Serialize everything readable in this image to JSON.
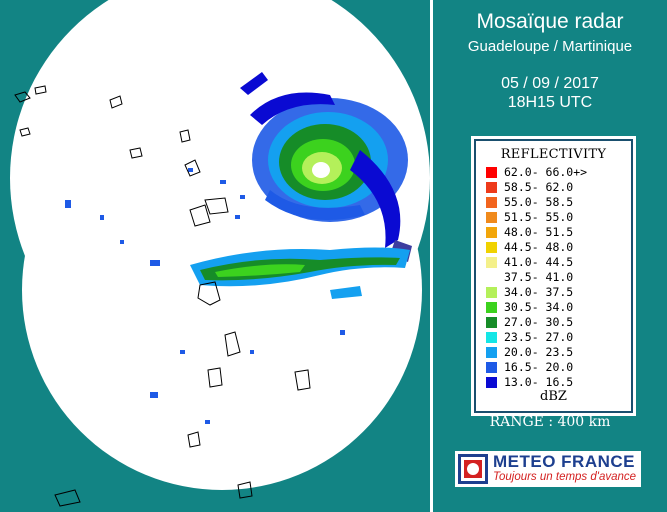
{
  "header": {
    "title": "Mosaïque radar",
    "subtitle": "Guadeloupe / Martinique",
    "date": "05 / 09 / 2017",
    "time": "18H15 UTC"
  },
  "legend": {
    "title": "REFLECTIVITY",
    "unit": "dBZ",
    "items": [
      {
        "range": "62.0- 66.0+>",
        "color": "#ff0000"
      },
      {
        "range": "58.5- 62.0",
        "color": "#ee3a1a"
      },
      {
        "range": "55.0- 58.5",
        "color": "#f2641e"
      },
      {
        "range": "51.5- 55.0",
        "color": "#f08a1c"
      },
      {
        "range": "48.0- 51.5",
        "color": "#f2a60a"
      },
      {
        "range": "44.5- 48.0",
        "color": "#f0d200"
      },
      {
        "range": "41.0- 44.5",
        "color": "#f4f08a"
      },
      {
        "range": "37.5- 41.0",
        "color": "#ffffff"
      },
      {
        "range": "34.0- 37.5",
        "color": "#b4f05a"
      },
      {
        "range": "30.5- 34.0",
        "color": "#3cd21e"
      },
      {
        "range": "27.0- 30.5",
        "color": "#168c28"
      },
      {
        "range": "23.5- 27.0",
        "color": "#14e6e6"
      },
      {
        "range": "20.0- 23.5",
        "color": "#14a0f0"
      },
      {
        "range": "16.5- 20.0",
        "color": "#1e5ae6"
      },
      {
        "range": "13.0- 16.5",
        "color": "#0a0ad2"
      }
    ]
  },
  "range_label": "RANGE : 400 km",
  "logo": {
    "brand": "METEO FRANCE",
    "slogan": "Toujours un temps d'avance"
  }
}
